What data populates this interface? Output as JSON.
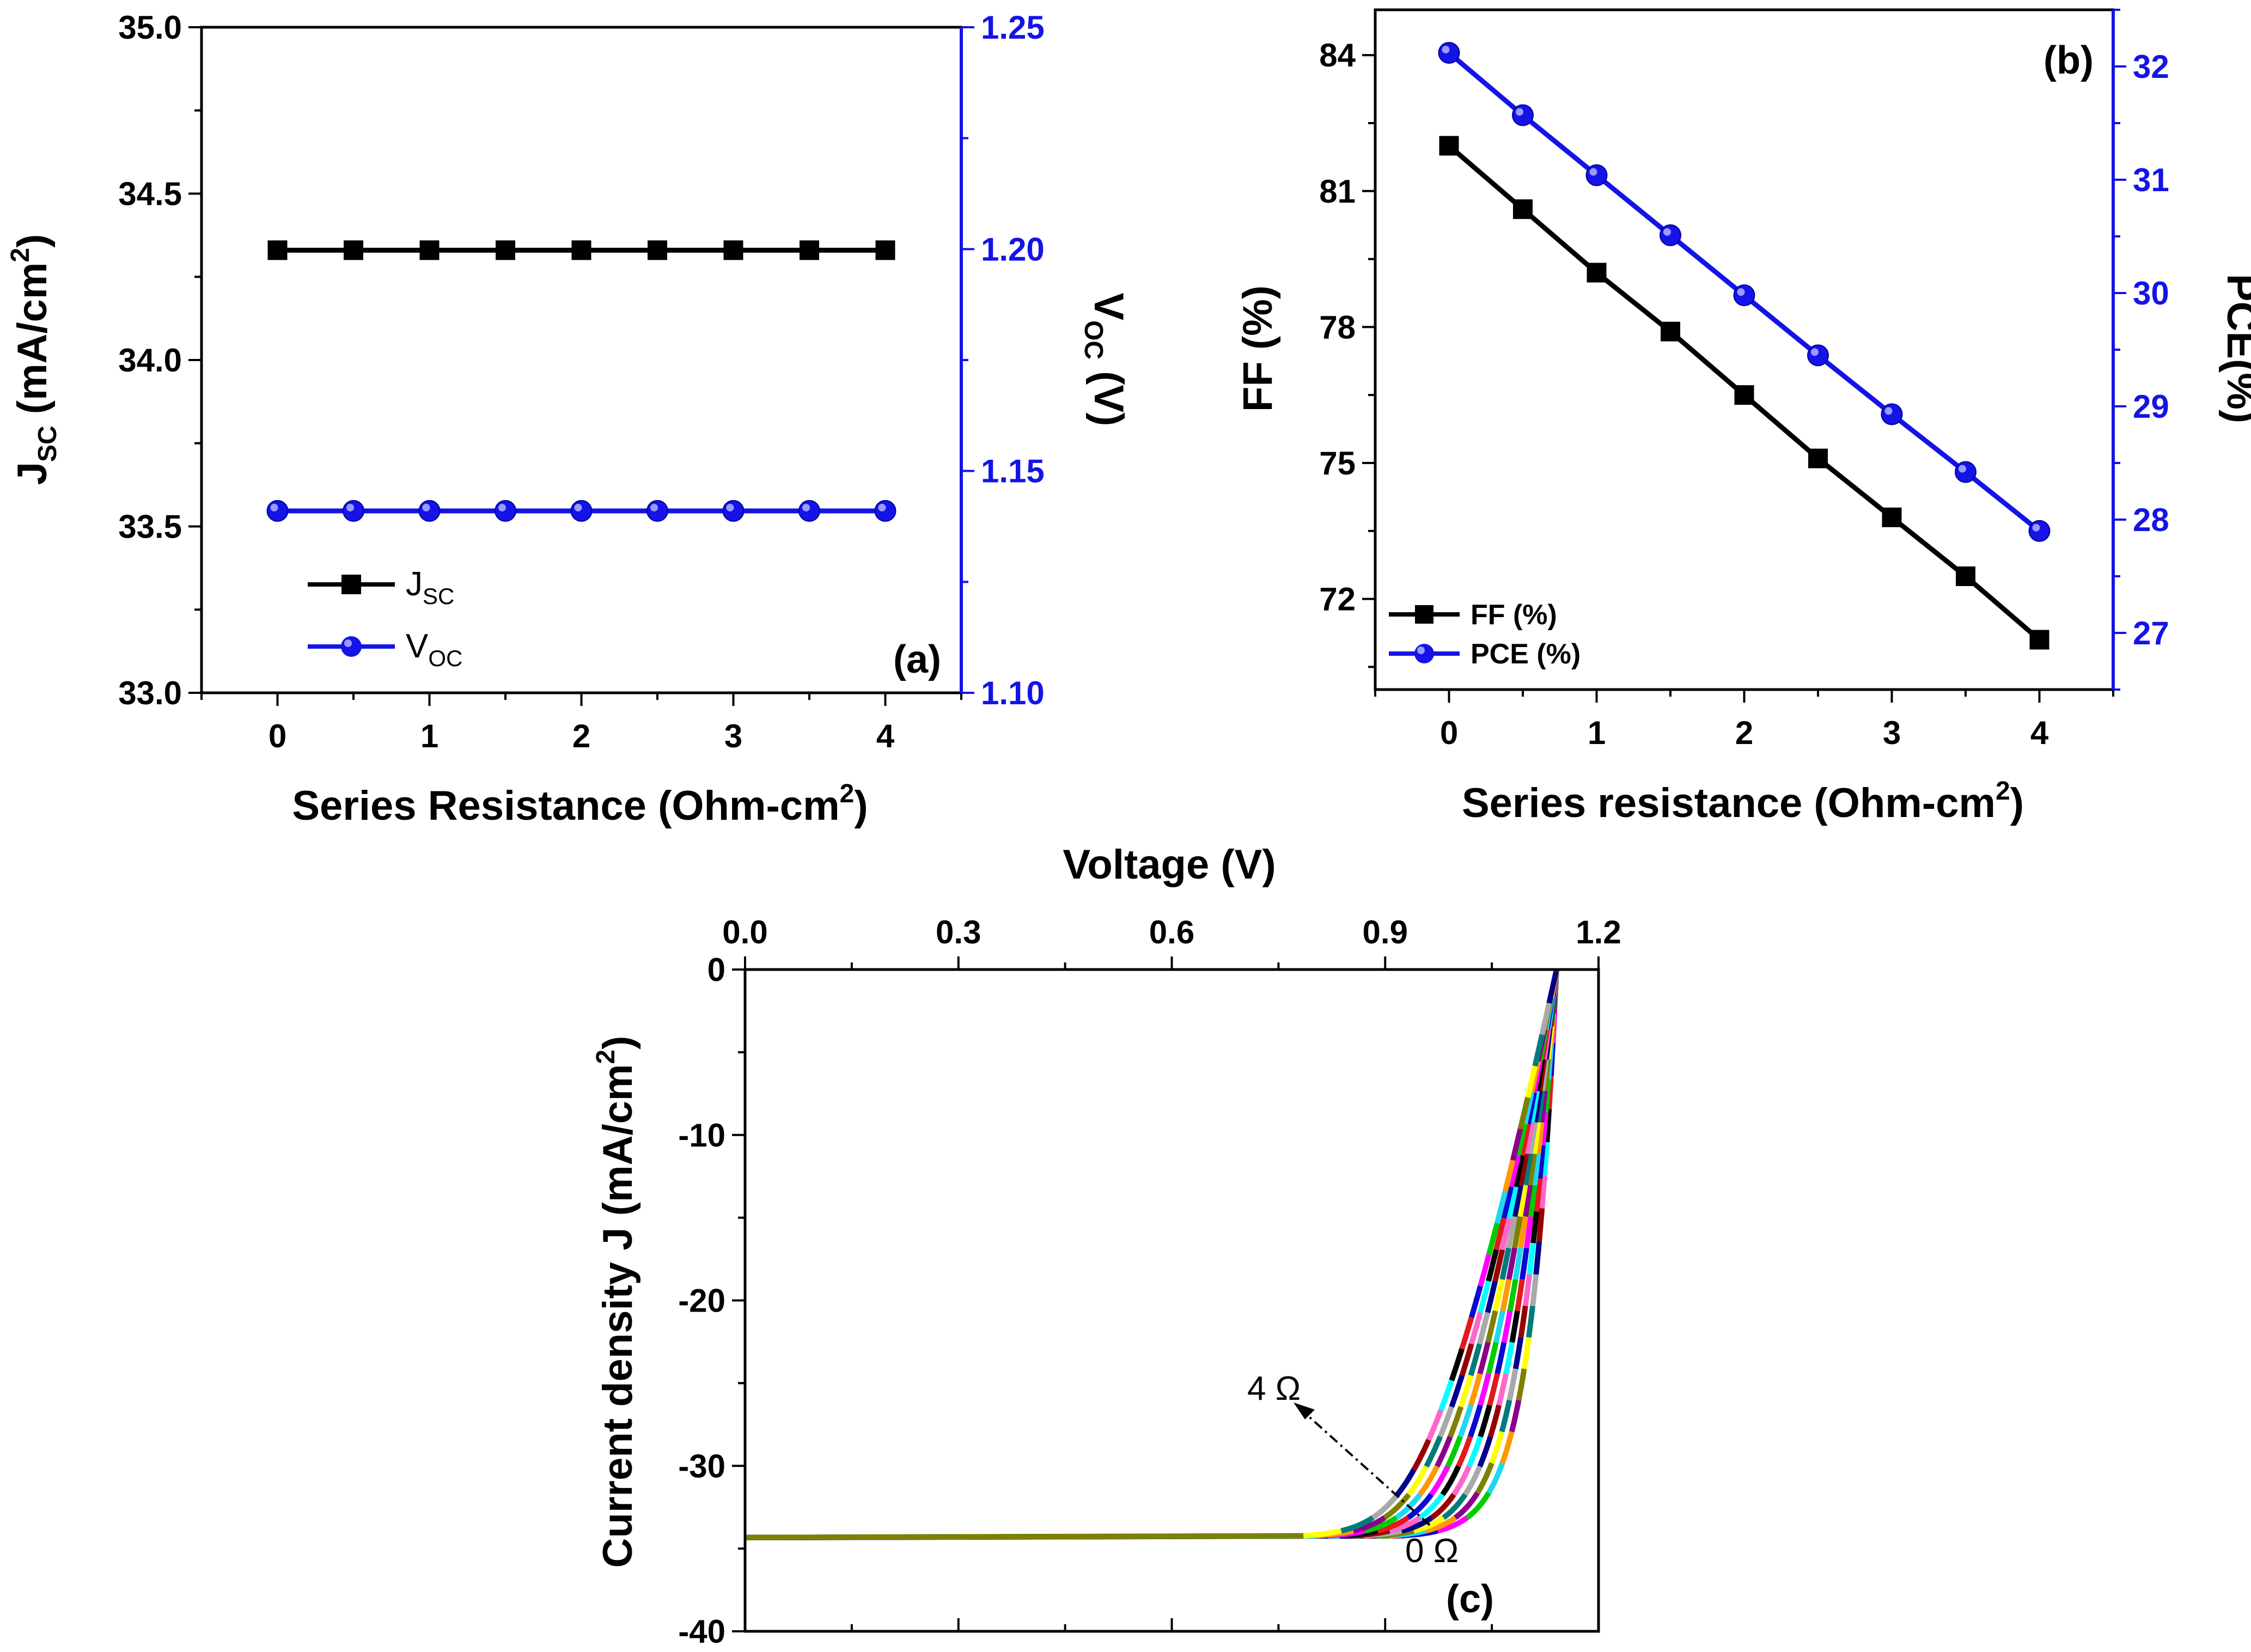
{
  "colors": {
    "black": "#000000",
    "blue": "#1414e6",
    "iv_palette": [
      "#000000",
      "#e31a1c",
      "#0a0ad2",
      "#ff00ff",
      "#00cc00",
      "#1fd8f0",
      "#ff9900",
      "#8b008b",
      "#7f7f00",
      "#ffff00",
      "#007b7b",
      "#a9a9a9",
      "#000088",
      "#990000",
      "#ff66cc",
      "#00ffff"
    ]
  },
  "chart_data": [
    {
      "panel": "(a)",
      "type": "line",
      "xlabel": "Series Resistance (Ohm-cm",
      "xlabel_sup": "2",
      "xlabel_end": ")",
      "ylabel_left": {
        "main": "J",
        "sub": "SC",
        "rest": " (mA/cm",
        "sup": "2",
        "end": ")"
      },
      "ylabel_right": {
        "main": "V",
        "sub": "OC",
        "rest": " (V)"
      },
      "x": [
        0,
        0.5,
        1,
        1.5,
        2,
        2.5,
        3,
        3.5,
        4
      ],
      "xlim": [
        -0.5,
        4.5
      ],
      "xticks": [
        "0",
        "1",
        "2",
        "3",
        "4"
      ],
      "ylim_left": [
        33.0,
        35.0
      ],
      "yticks_left": [
        "33.0",
        "33.5",
        "34.0",
        "34.5",
        "35.0"
      ],
      "ylim_right": [
        1.1,
        1.25
      ],
      "yticks_right": [
        "1.10",
        "1.15",
        "1.20",
        "1.25"
      ],
      "series": [
        {
          "name": "J",
          "name_sub": "SC",
          "axis": "left",
          "marker": "square",
          "values": [
            34.33,
            34.33,
            34.33,
            34.33,
            34.33,
            34.33,
            34.33,
            34.33,
            34.33
          ]
        },
        {
          "name": "V",
          "name_sub": "OC",
          "axis": "right",
          "marker": "circle",
          "values": [
            1.141,
            1.141,
            1.141,
            1.141,
            1.141,
            1.141,
            1.141,
            1.141,
            1.141
          ]
        }
      ],
      "legend": "bottom-left"
    },
    {
      "panel": "(b)",
      "type": "line",
      "xlabel": "Series resistance (Ohm-cm",
      "xlabel_sup": "2",
      "xlabel_end": ")",
      "ylabel_left": "FF (%)",
      "ylabel_right": "PCE(%)",
      "x": [
        0,
        0.5,
        1,
        1.5,
        2,
        2.5,
        3,
        3.5,
        4
      ],
      "xlim": [
        -0.5,
        4.5
      ],
      "xticks": [
        "0",
        "1",
        "2",
        "3",
        "4"
      ],
      "ylim_left": [
        70,
        85
      ],
      "yticks_left": [
        "72",
        "75",
        "78",
        "81",
        "84"
      ],
      "ylim_right": [
        26.5,
        32.5
      ],
      "yticks_right": [
        "27",
        "28",
        "29",
        "30",
        "31",
        "32"
      ],
      "series": [
        {
          "name": "FF (%)",
          "axis": "left",
          "marker": "square",
          "values": [
            82.0,
            80.6,
            79.2,
            77.9,
            76.5,
            75.1,
            73.8,
            72.5,
            71.1
          ]
        },
        {
          "name": "PCE (%)",
          "axis": "right",
          "marker": "circle",
          "values": [
            32.12,
            31.57,
            31.04,
            30.51,
            29.98,
            29.45,
            28.93,
            28.42,
            27.9
          ]
        }
      ],
      "legend": "bottom-left"
    },
    {
      "panel": "(c)",
      "type": "line",
      "title": "Voltage (V)",
      "xlabel": "Voltage (V)",
      "xaxis_position": "top",
      "ylabel": "Current density J (mA/cm",
      "ylabel_sup": "2",
      "ylabel_end": ")",
      "xlim": [
        0.0,
        1.2
      ],
      "xticks": [
        "0.0",
        "0.3",
        "0.6",
        "0.9",
        "1.2"
      ],
      "ylim": [
        -40,
        0
      ],
      "yticks": [
        "-40",
        "-30",
        "-20",
        "-10",
        "0"
      ],
      "jsc": -34.33,
      "voc": 1.141,
      "series_resistance_ohm_cm2": [
        0,
        0.5,
        1,
        1.5,
        2,
        2.5,
        3,
        3.5,
        4
      ],
      "annotations": [
        {
          "text": "4 Ω",
          "at": {
            "v": 0.8,
            "j": -25.5
          }
        },
        {
          "text": "0 Ω",
          "at": {
            "v": 1.13,
            "j": -35.5
          }
        }
      ]
    }
  ]
}
